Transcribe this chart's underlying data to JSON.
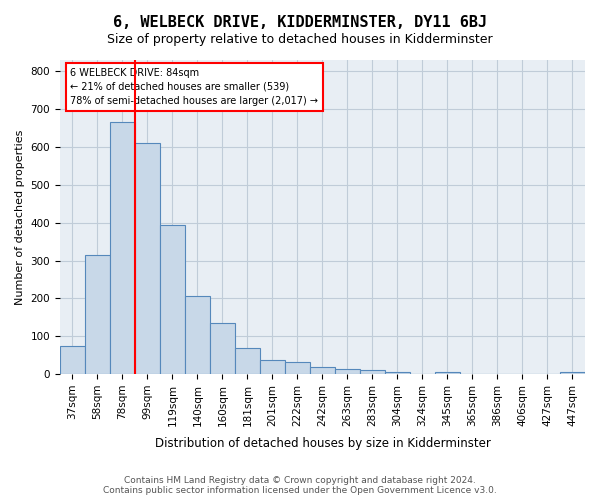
{
  "title": "6, WELBECK DRIVE, KIDDERMINSTER, DY11 6BJ",
  "subtitle": "Size of property relative to detached houses in Kidderminster",
  "xlabel": "Distribution of detached houses by size in Kidderminster",
  "ylabel": "Number of detached properties",
  "categories": [
    "37sqm",
    "58sqm",
    "78sqm",
    "99sqm",
    "119sqm",
    "140sqm",
    "160sqm",
    "181sqm",
    "201sqm",
    "222sqm",
    "242sqm",
    "263sqm",
    "283sqm",
    "304sqm",
    "324sqm",
    "345sqm",
    "365sqm",
    "386sqm",
    "406sqm",
    "427sqm",
    "447sqm"
  ],
  "values": [
    75,
    315,
    665,
    610,
    395,
    205,
    135,
    68,
    38,
    32,
    18,
    14,
    10,
    5,
    0,
    5,
    0,
    0,
    0,
    0,
    5
  ],
  "bar_color": "#c8d8e8",
  "bar_edge_color": "#5588bb",
  "bar_linewidth": 0.8,
  "redline_x": 2.5,
  "annotation_text": "6 WELBECK DRIVE: 84sqm\n← 21% of detached houses are smaller (539)\n78% of semi-detached houses are larger (2,017) →",
  "annotation_box_color": "white",
  "annotation_box_edge": "red",
  "redline_color": "red",
  "ylim": [
    0,
    830
  ],
  "yticks": [
    0,
    100,
    200,
    300,
    400,
    500,
    600,
    700,
    800
  ],
  "grid_color": "#c0ccd8",
  "plot_bg": "#e8eef4",
  "footer1": "Contains HM Land Registry data © Crown copyright and database right 2024.",
  "footer2": "Contains public sector information licensed under the Open Government Licence v3.0.",
  "title_fontsize": 11,
  "subtitle_fontsize": 9,
  "axis_fontsize": 8,
  "tick_fontsize": 7.5,
  "footer_fontsize": 6.5
}
